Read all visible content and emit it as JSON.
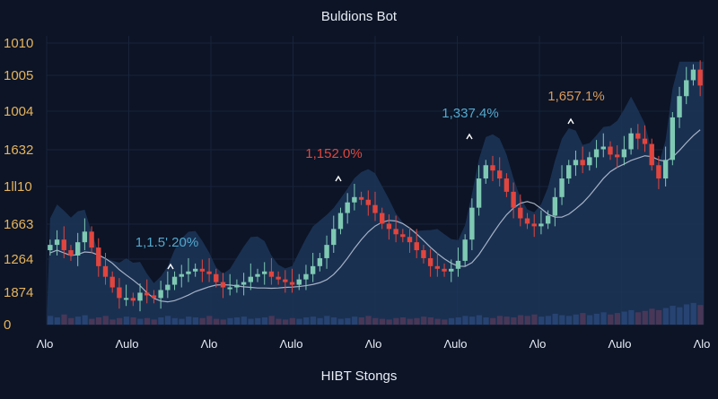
{
  "chart_data": {
    "type": "candlestick",
    "title": "Buldions Bot",
    "xlabel": "HIBT Stongs",
    "y_tick_labels": [
      "1010",
      "1005",
      "1004",
      "1632",
      "1ll10",
      "1663",
      "1264",
      "1874",
      "0"
    ],
    "x_tick_labels": [
      "Λlo",
      "Λulo",
      "Λlo",
      "Λulo",
      "Λlo",
      "Λulo",
      "Λlo",
      "Λulo",
      "Λlo"
    ],
    "annotations": [
      {
        "text": "1,1.5'.20%",
        "color": "#53a9cf"
      },
      {
        "text": "1,152.0%",
        "color": "#e0473e"
      },
      {
        "text": "1,337.4%",
        "color": "#53a9cf"
      },
      {
        "text": "1,657.1%",
        "color": "#d99a5b"
      }
    ],
    "colors": {
      "up": "#7fc9b3",
      "down": "#e2453e",
      "area": "#1c3559",
      "volume": "#2c4a7d",
      "ma_line": "#c9d3e2"
    },
    "close_levels": [
      0.3,
      0.32,
      0.28,
      0.26,
      0.31,
      0.35,
      0.29,
      0.22,
      0.18,
      0.14,
      0.1,
      0.1,
      0.09,
      0.12,
      0.11,
      0.1,
      0.13,
      0.15,
      0.18,
      0.19,
      0.2,
      0.21,
      0.2,
      0.19,
      0.16,
      0.14,
      0.14,
      0.15,
      0.16,
      0.18,
      0.19,
      0.2,
      0.18,
      0.17,
      0.16,
      0.15,
      0.17,
      0.19,
      0.22,
      0.25,
      0.3,
      0.36,
      0.42,
      0.46,
      0.48,
      0.47,
      0.45,
      0.42,
      0.38,
      0.36,
      0.34,
      0.33,
      0.31,
      0.28,
      0.25,
      0.22,
      0.21,
      0.2,
      0.21,
      0.24,
      0.32,
      0.44,
      0.55,
      0.6,
      0.58,
      0.55,
      0.5,
      0.44,
      0.4,
      0.38,
      0.37,
      0.38,
      0.41,
      0.48,
      0.55,
      0.6,
      0.62,
      0.6,
      0.63,
      0.66,
      0.67,
      0.64,
      0.63,
      0.66,
      0.72,
      0.7,
      0.68,
      0.6,
      0.55,
      0.62,
      0.78,
      0.86,
      0.92,
      0.96,
      0.9
    ],
    "volume_levels": [
      0.12,
      0.1,
      0.14,
      0.09,
      0.11,
      0.13,
      0.08,
      0.1,
      0.12,
      0.07,
      0.09,
      0.11,
      0.1,
      0.08,
      0.09,
      0.07,
      0.1,
      0.12,
      0.09,
      0.08,
      0.11,
      0.1,
      0.09,
      0.12,
      0.08,
      0.07,
      0.09,
      0.1,
      0.11,
      0.08,
      0.09,
      0.1,
      0.12,
      0.08,
      0.07,
      0.09,
      0.08,
      0.1,
      0.11,
      0.09,
      0.12,
      0.1,
      0.08,
      0.09,
      0.11,
      0.1,
      0.12,
      0.09,
      0.08,
      0.07,
      0.09,
      0.1,
      0.08,
      0.09,
      0.11,
      0.1,
      0.08,
      0.07,
      0.09,
      0.1,
      0.12,
      0.11,
      0.13,
      0.1,
      0.09,
      0.12,
      0.11,
      0.1,
      0.13,
      0.12,
      0.14,
      0.11,
      0.12,
      0.15,
      0.13,
      0.12,
      0.14,
      0.16,
      0.13,
      0.15,
      0.17,
      0.14,
      0.16,
      0.18,
      0.2,
      0.17,
      0.19,
      0.22,
      0.2,
      0.23,
      0.26,
      0.24,
      0.28,
      0.3,
      0.27
    ]
  }
}
